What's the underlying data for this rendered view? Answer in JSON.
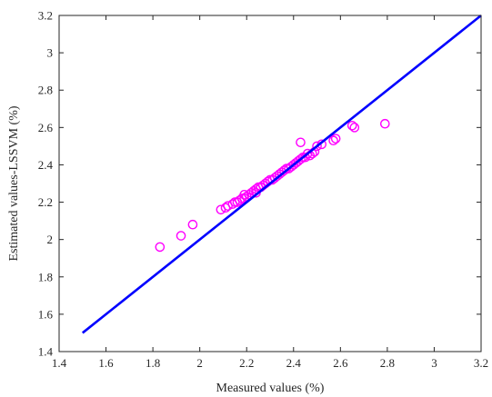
{
  "chart_data": {
    "type": "scatter",
    "xlabel": "Measured values (%)",
    "ylabel": "Estimated values-LSSVM (%)",
    "xlim": [
      1.4,
      3.2
    ],
    "ylim": [
      1.4,
      3.2
    ],
    "xticks": [
      "1.4",
      "1.6",
      "1.8",
      "2",
      "2.2",
      "2.4",
      "2.6",
      "2.8",
      "3",
      "3.2"
    ],
    "yticks": [
      "1.4",
      "1.6",
      "1.8",
      "2",
      "2.2",
      "2.4",
      "2.6",
      "2.8",
      "3",
      "3.2"
    ],
    "grid": false,
    "legend": "none",
    "series": [
      {
        "kind": "scatter",
        "marker": "circle",
        "color": "#ff00ff",
        "points": [
          [
            1.83,
            1.96
          ],
          [
            1.92,
            2.02
          ],
          [
            1.97,
            2.08
          ],
          [
            2.09,
            2.16
          ],
          [
            2.11,
            2.17
          ],
          [
            2.12,
            2.18
          ],
          [
            2.14,
            2.19
          ],
          [
            2.15,
            2.2
          ],
          [
            2.16,
            2.2
          ],
          [
            2.17,
            2.21
          ],
          [
            2.18,
            2.22
          ],
          [
            2.19,
            2.22
          ],
          [
            2.19,
            2.24
          ],
          [
            2.2,
            2.23
          ],
          [
            2.21,
            2.24
          ],
          [
            2.22,
            2.25
          ],
          [
            2.23,
            2.26
          ],
          [
            2.24,
            2.25
          ],
          [
            2.24,
            2.27
          ],
          [
            2.25,
            2.28
          ],
          [
            2.26,
            2.28
          ],
          [
            2.27,
            2.29
          ],
          [
            2.28,
            2.3
          ],
          [
            2.29,
            2.31
          ],
          [
            2.3,
            2.32
          ],
          [
            2.31,
            2.32
          ],
          [
            2.32,
            2.33
          ],
          [
            2.33,
            2.34
          ],
          [
            2.34,
            2.35
          ],
          [
            2.35,
            2.36
          ],
          [
            2.36,
            2.37
          ],
          [
            2.37,
            2.38
          ],
          [
            2.38,
            2.38
          ],
          [
            2.39,
            2.39
          ],
          [
            2.4,
            2.4
          ],
          [
            2.41,
            2.41
          ],
          [
            2.42,
            2.42
          ],
          [
            2.43,
            2.43
          ],
          [
            2.44,
            2.44
          ],
          [
            2.45,
            2.44
          ],
          [
            2.46,
            2.46
          ],
          [
            2.47,
            2.45
          ],
          [
            2.48,
            2.46
          ],
          [
            2.49,
            2.47
          ],
          [
            2.5,
            2.5
          ],
          [
            2.52,
            2.51
          ],
          [
            2.43,
            2.52
          ],
          [
            2.57,
            2.53
          ],
          [
            2.58,
            2.54
          ],
          [
            2.65,
            2.61
          ],
          [
            2.66,
            2.6
          ],
          [
            2.79,
            2.62
          ]
        ]
      },
      {
        "kind": "line",
        "color": "#0000ff",
        "x": [
          1.5,
          3.2
        ],
        "y": [
          1.5,
          3.2
        ]
      }
    ]
  }
}
